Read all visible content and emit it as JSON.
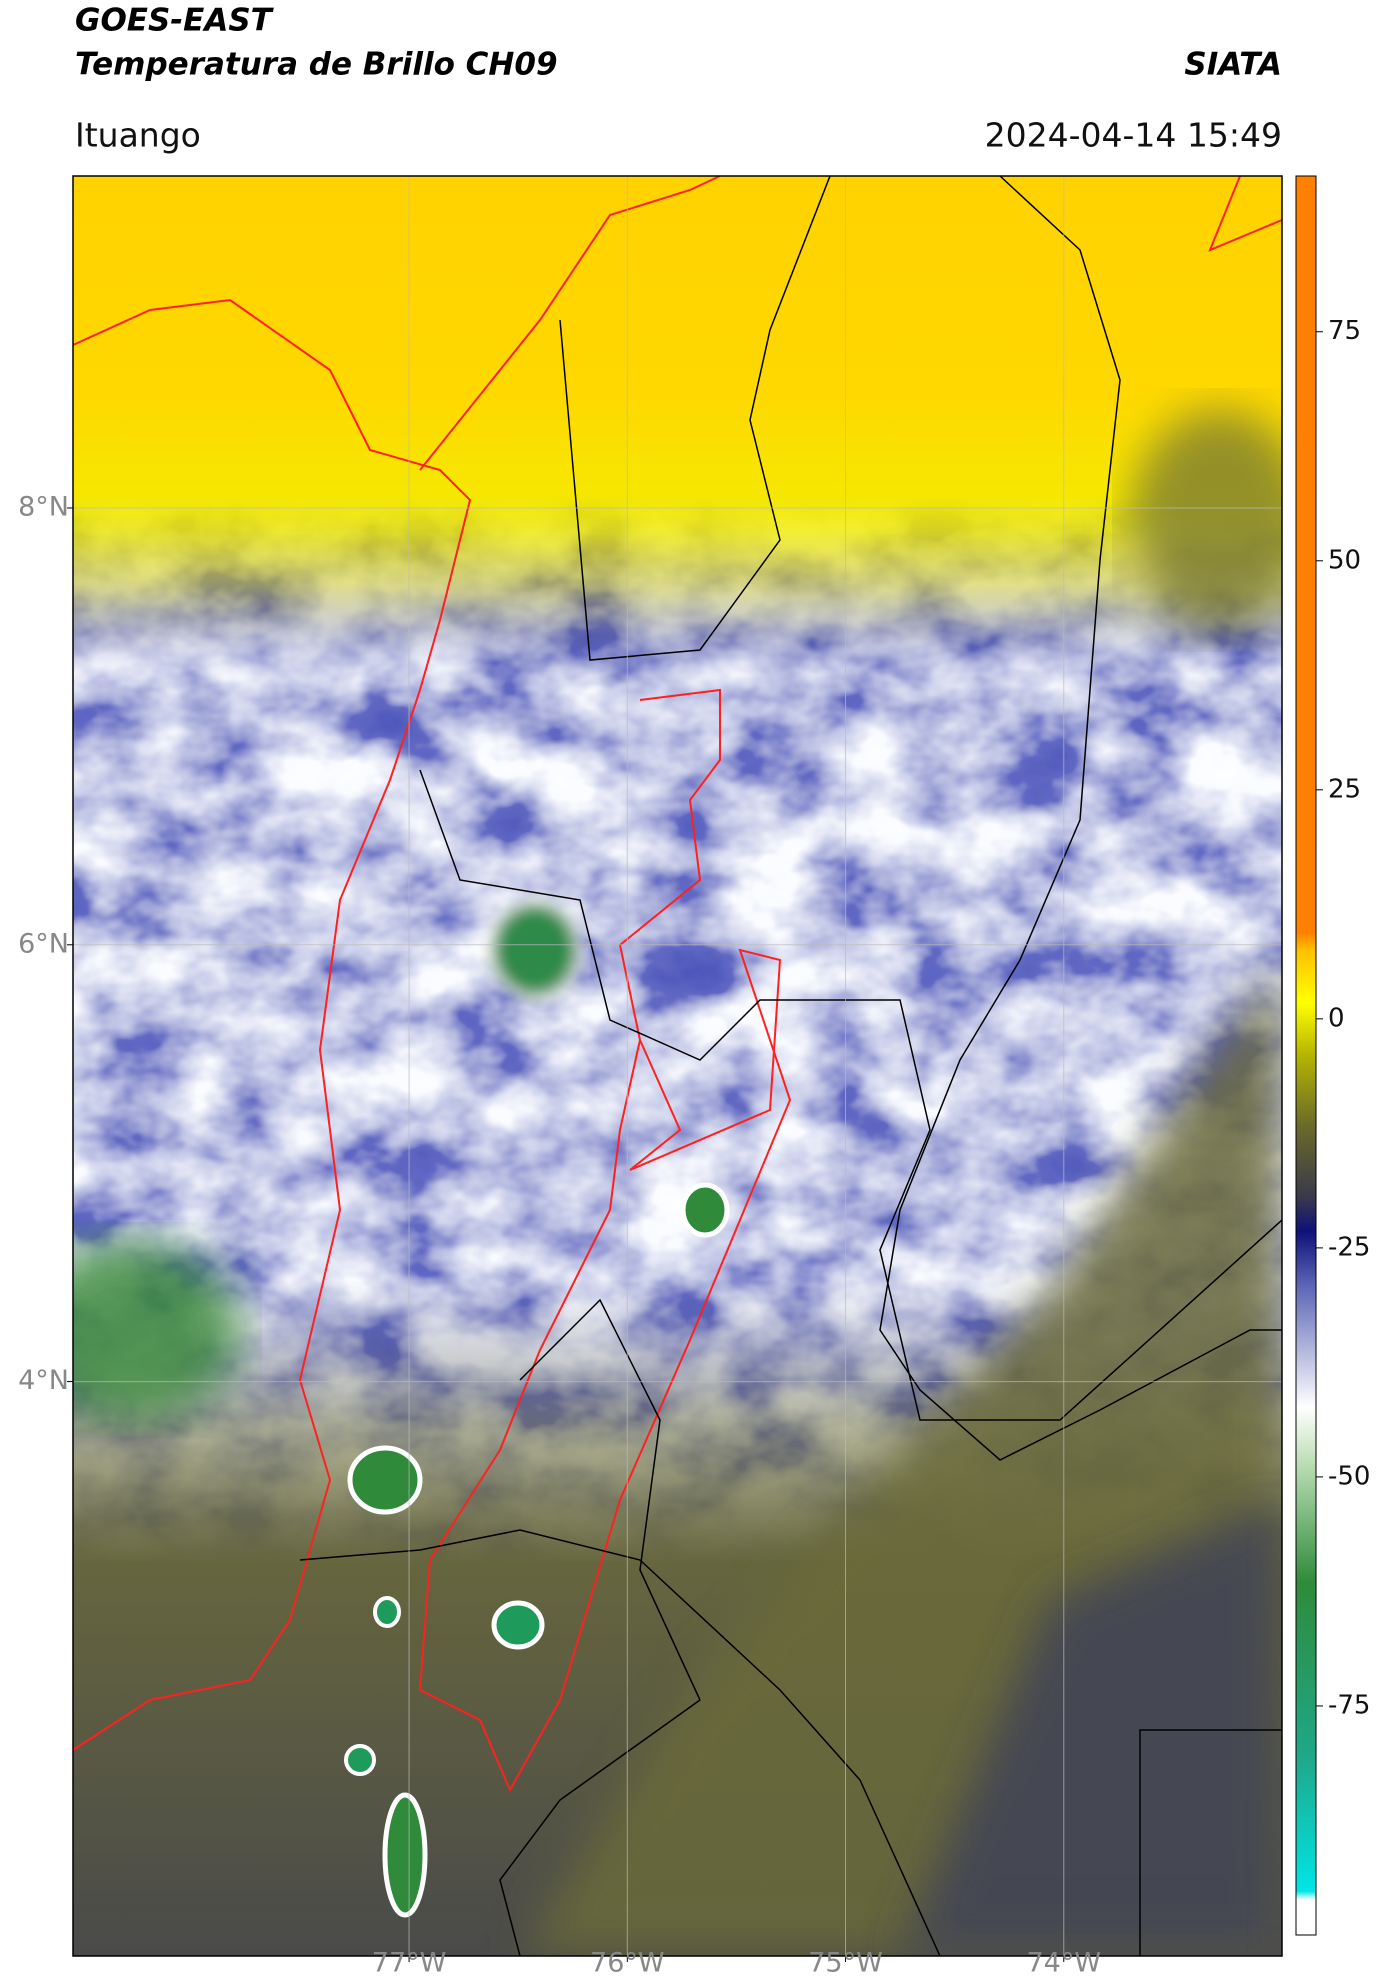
{
  "header": {
    "satellite": "GOES-EAST",
    "product": "Temperatura de Brillo CH09",
    "agency": "SIATA",
    "location": "Ituango",
    "timestamp": "2024-04-14 15:49"
  },
  "map": {
    "xlim": [
      -78.54,
      -73.0
    ],
    "ylim": [
      1.37,
      9.52
    ],
    "xticks": [
      {
        "value": -77,
        "label": "77°W"
      },
      {
        "value": -76,
        "label": "76°W"
      },
      {
        "value": -75,
        "label": "75°W"
      },
      {
        "value": -74,
        "label": "74°W"
      }
    ],
    "yticks": [
      {
        "value": 4,
        "label": "4°N"
      },
      {
        "value": 6,
        "label": "6°N"
      },
      {
        "value": 8,
        "label": "8°N"
      }
    ],
    "grid": true
  },
  "colorbar": {
    "lim": [
      -100,
      92
    ],
    "ticks": [
      -75,
      -50,
      -25,
      0,
      25,
      50,
      75
    ]
  }
}
